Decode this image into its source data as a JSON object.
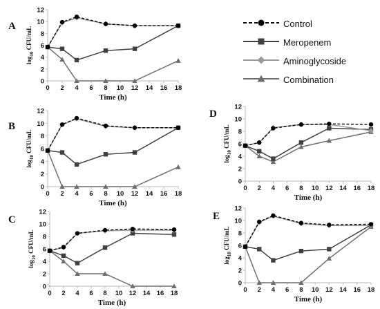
{
  "legend": [
    {
      "key": "control",
      "label": "Control"
    },
    {
      "key": "meropenem",
      "label": "Meropenem"
    },
    {
      "key": "aminoglycoside",
      "label": "Aminoglycoside"
    },
    {
      "key": "combination",
      "label": "Combination"
    }
  ],
  "colors": {
    "control": "#000000",
    "meropenem": "#404040",
    "aminoglycoside": "#9a9a9a",
    "combination": "#6e6e6e",
    "axis": "#b8b8b8",
    "text": "#111111"
  },
  "chart_data": [
    {
      "type": "line",
      "panel": "A",
      "xlabel": "Time (h)",
      "ylabel": "log10 CFU/mL",
      "xticks": [
        0,
        2,
        4,
        6,
        8,
        10,
        12,
        14,
        16,
        18
      ],
      "yticks": [
        0,
        2,
        4,
        6,
        8,
        10,
        12
      ],
      "xlim": [
        0,
        18
      ],
      "ylim": [
        0,
        12
      ],
      "grid": false,
      "series": [
        {
          "key": "control",
          "name": "Control",
          "x": [
            0,
            2,
            4,
            8,
            12,
            18
          ],
          "y": [
            5.7,
            9.9,
            10.8,
            9.6,
            9.3,
            9.3
          ]
        },
        {
          "key": "meropenem",
          "name": "Meropenem",
          "x": [
            0,
            2,
            4,
            8,
            12,
            18
          ],
          "y": [
            5.7,
            5.4,
            3.5,
            5.1,
            5.4,
            9.3
          ]
        },
        {
          "key": "aminoglycoside",
          "name": "Aminoglycoside",
          "x": [
            0,
            2,
            4,
            8,
            12,
            18
          ],
          "y": [
            5.7,
            9.8,
            10.6,
            9.6,
            9.3,
            9.3
          ]
        },
        {
          "key": "combination",
          "name": "Combination",
          "x": [
            0,
            2,
            4,
            8,
            12,
            18
          ],
          "y": [
            5.7,
            3.6,
            0,
            0,
            0,
            3.4
          ]
        }
      ]
    },
    {
      "type": "line",
      "panel": "B",
      "xlabel": "Time (h)",
      "ylabel": "log10 CFU/mL",
      "xticks": [
        0,
        2,
        4,
        6,
        8,
        10,
        12,
        14,
        16,
        18
      ],
      "yticks": [
        0,
        2,
        4,
        6,
        8,
        10,
        12
      ],
      "xlim": [
        0,
        18
      ],
      "ylim": [
        0,
        12
      ],
      "grid": false,
      "series": [
        {
          "key": "control",
          "name": "Control",
          "x": [
            0,
            2,
            4,
            8,
            12,
            18
          ],
          "y": [
            5.7,
            9.8,
            10.8,
            9.6,
            9.3,
            9.3
          ]
        },
        {
          "key": "meropenem",
          "name": "Meropenem",
          "x": [
            0,
            2,
            4,
            8,
            12,
            18
          ],
          "y": [
            5.7,
            5.4,
            3.5,
            5.1,
            5.4,
            9.3
          ]
        },
        {
          "key": "aminoglycoside",
          "name": "Aminoglycoside",
          "x": [
            0,
            2,
            4,
            8,
            12,
            18
          ],
          "y": [
            5.7,
            9.8,
            10.7,
            9.5,
            9.3,
            9.3
          ]
        },
        {
          "key": "combination",
          "name": "Combination",
          "x": [
            0,
            2,
            4,
            8,
            12,
            18
          ],
          "y": [
            5.7,
            0,
            0,
            0,
            0,
            3.1
          ]
        }
      ]
    },
    {
      "type": "line",
      "panel": "C",
      "xlabel": "Time (h)",
      "ylabel": "log10 CFU/mL",
      "xticks": [
        0,
        2,
        4,
        6,
        8,
        10,
        12,
        14,
        16,
        18
      ],
      "yticks": [
        0,
        2,
        4,
        6,
        8,
        10,
        12
      ],
      "xlim": [
        0,
        18
      ],
      "ylim": [
        0,
        12
      ],
      "grid": false,
      "series": [
        {
          "key": "control",
          "name": "Control",
          "x": [
            0,
            2,
            4,
            8,
            12,
            18
          ],
          "y": [
            5.7,
            6.3,
            8.5,
            9.0,
            9.2,
            9.1
          ]
        },
        {
          "key": "meropenem",
          "name": "Meropenem",
          "x": [
            0,
            2,
            4,
            8,
            12,
            18
          ],
          "y": [
            5.7,
            4.9,
            3.7,
            6.2,
            8.5,
            8.3
          ]
        },
        {
          "key": "aminoglycoside",
          "name": "Aminoglycoside",
          "x": [
            0,
            2,
            4,
            8,
            12,
            18
          ],
          "y": [
            5.7,
            6.2,
            8.5,
            8.9,
            9.0,
            9.0
          ]
        },
        {
          "key": "combination",
          "name": "Combination",
          "x": [
            0,
            2,
            4,
            8,
            12,
            18
          ],
          "y": [
            5.7,
            4.0,
            2.0,
            2.0,
            0,
            0
          ]
        }
      ]
    },
    {
      "type": "line",
      "panel": "D",
      "xlabel": "Time (h)",
      "ylabel": "log10 CFU/mL",
      "xticks": [
        0,
        2,
        4,
        6,
        8,
        10,
        12,
        14,
        16,
        18
      ],
      "yticks": [
        0,
        2,
        4,
        6,
        8,
        10,
        12
      ],
      "xlim": [
        0,
        18
      ],
      "ylim": [
        0,
        12
      ],
      "grid": false,
      "series": [
        {
          "key": "control",
          "name": "Control",
          "x": [
            0,
            2,
            4,
            8,
            12,
            18
          ],
          "y": [
            5.7,
            6.2,
            8.5,
            9.1,
            9.2,
            9.1
          ]
        },
        {
          "key": "meropenem",
          "name": "Meropenem",
          "x": [
            0,
            2,
            4,
            8,
            12,
            18
          ],
          "y": [
            5.7,
            4.8,
            3.6,
            6.2,
            8.5,
            8.3
          ]
        },
        {
          "key": "aminoglycoside",
          "name": "Aminoglycoside",
          "x": [
            0,
            2,
            4,
            8,
            12,
            18
          ],
          "y": [
            5.7,
            6.2,
            8.6,
            9.1,
            9.1,
            8.1
          ]
        },
        {
          "key": "combination",
          "name": "Combination",
          "x": [
            0,
            2,
            4,
            8,
            12,
            18
          ],
          "y": [
            5.7,
            4.0,
            3.1,
            5.5,
            6.5,
            7.9
          ]
        }
      ]
    },
    {
      "type": "line",
      "panel": "E",
      "xlabel": "Time (h)",
      "ylabel": "log10 CFU/mL",
      "xticks": [
        0,
        2,
        4,
        6,
        8,
        10,
        12,
        14,
        16,
        18
      ],
      "yticks": [
        0,
        2,
        4,
        6,
        8,
        10,
        12
      ],
      "xlim": [
        0,
        18
      ],
      "ylim": [
        0,
        12
      ],
      "grid": false,
      "series": [
        {
          "key": "control",
          "name": "Control",
          "x": [
            0,
            2,
            4,
            8,
            12,
            18
          ],
          "y": [
            5.8,
            9.8,
            10.8,
            9.6,
            9.3,
            9.4
          ]
        },
        {
          "key": "meropenem",
          "name": "Meropenem",
          "x": [
            0,
            2,
            4,
            8,
            12,
            18
          ],
          "y": [
            5.8,
            5.4,
            3.6,
            5.1,
            5.4,
            9.3
          ]
        },
        {
          "key": "aminoglycoside",
          "name": "Aminoglycoside",
          "x": [
            0,
            2,
            4,
            8,
            12,
            18
          ],
          "y": [
            5.8,
            9.7,
            10.7,
            9.5,
            9.2,
            9.2
          ]
        },
        {
          "key": "combination",
          "name": "Combination",
          "x": [
            0,
            2,
            4,
            8,
            12,
            18
          ],
          "y": [
            5.8,
            0,
            0,
            0,
            3.9,
            9.0
          ]
        }
      ]
    }
  ]
}
